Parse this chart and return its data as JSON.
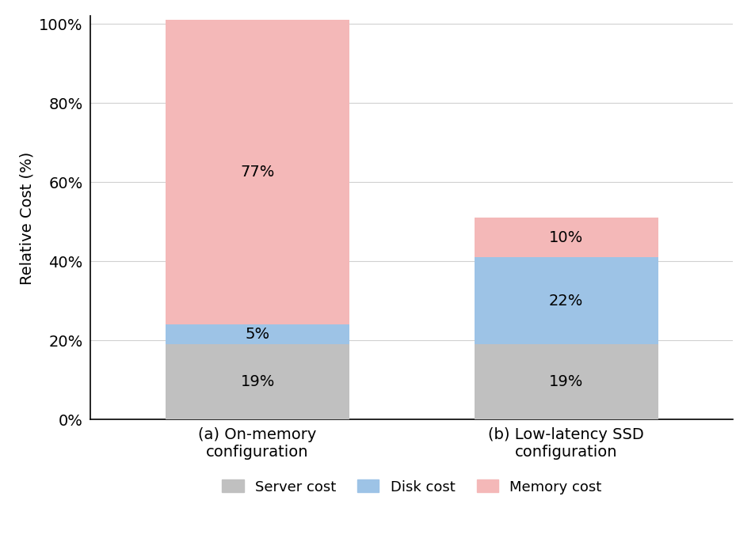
{
  "categories": [
    "(a) On-memory\nconfiguration",
    "(b) Low-latency SSD\nconfiguration"
  ],
  "server_cost": [
    19,
    19
  ],
  "disk_cost": [
    5,
    22
  ],
  "memory_cost": [
    77,
    10
  ],
  "server_color": "#c0c0c0",
  "disk_color": "#9dc3e6",
  "memory_color": "#f4b8b8",
  "ylabel": "Relative Cost (%)",
  "yticks": [
    0,
    20,
    40,
    60,
    80,
    100
  ],
  "ytick_labels": [
    "0%",
    "20%",
    "40%",
    "60%",
    "80%",
    "100%"
  ],
  "legend_labels": [
    "Server cost",
    "Disk cost",
    "Memory cost"
  ],
  "bar_width": 0.22,
  "label_fontsize": 14,
  "tick_fontsize": 14,
  "legend_fontsize": 13,
  "annot_fontsize": 14,
  "background_color": "#ffffff",
  "x_positions": [
    0.33,
    0.7
  ]
}
